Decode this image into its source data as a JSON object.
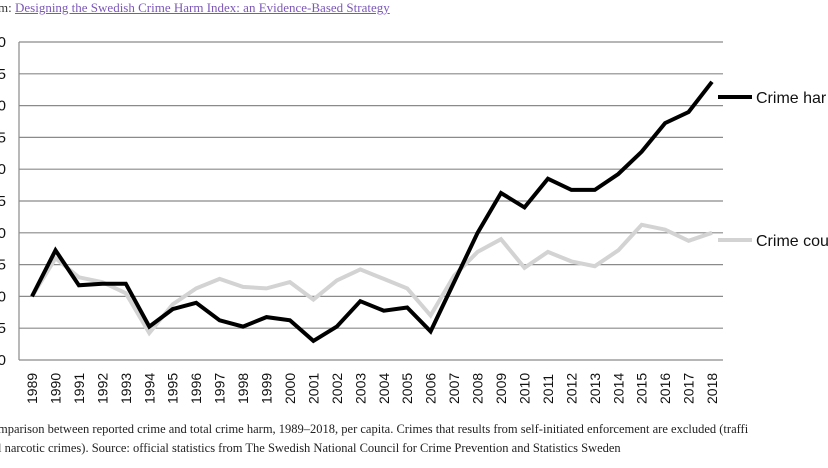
{
  "source": {
    "prefix": "m: ",
    "link_text": "Designing the Swedish Crime Harm Index: an Evidence-Based Strategy"
  },
  "caption": {
    "line1": "mparison between reported crime and total crime harm, 1989–2018, per capita. Crimes that results from self-initiated enforcement are excluded (traffi",
    "line2": "l narcotic crimes). Source: official statistics from The Swedish National Council for Crime Prevention and Statistics Sweden"
  },
  "chart_data": {
    "type": "line",
    "x": [
      1989,
      1990,
      1991,
      1992,
      1993,
      1994,
      1995,
      1996,
      1997,
      1998,
      1999,
      2000,
      2001,
      2002,
      2003,
      2004,
      2005,
      2006,
      2007,
      2008,
      2009,
      2010,
      2011,
      2012,
      2013,
      2014,
      2015,
      2016,
      2017,
      2018
    ],
    "x_tick_labels": [
      "1989",
      "1990",
      "1991",
      "1992",
      "1993",
      "1994",
      "1995",
      "1996",
      "1997",
      "1998",
      "1999",
      "2000",
      "2001",
      "2002",
      "2003",
      "2004",
      "2005",
      "2006",
      "2007",
      "2008",
      "2009",
      "2010",
      "2011",
      "2012",
      "2013",
      "2014",
      "2015",
      "2016",
      "2017",
      "2018"
    ],
    "y_tick_labels": [
      "0",
      "5",
      "0",
      "5",
      "0",
      "5",
      "0",
      "5",
      "0",
      "5",
      "0"
    ],
    "ylim": [
      0,
      10
    ],
    "grid": true,
    "legend_placement": "right",
    "series": [
      {
        "name": "Crime har",
        "color": "#000000",
        "values": [
          2.0,
          3.45,
          2.35,
          2.4,
          2.4,
          1.05,
          1.6,
          1.8,
          1.25,
          1.05,
          1.35,
          1.25,
          0.6,
          1.05,
          1.85,
          1.55,
          1.65,
          0.9,
          2.45,
          4.0,
          5.25,
          4.8,
          5.7,
          5.35,
          5.35,
          5.85,
          6.55,
          7.45,
          7.8,
          8.75
        ]
      },
      {
        "name": "Crime cou",
        "color": "#d3d3d3",
        "values": [
          2.0,
          3.2,
          2.6,
          2.45,
          2.1,
          0.85,
          1.75,
          2.25,
          2.55,
          2.3,
          2.25,
          2.45,
          1.9,
          2.5,
          2.85,
          2.55,
          2.25,
          1.4,
          2.65,
          3.4,
          3.8,
          2.9,
          3.4,
          3.1,
          2.95,
          3.45,
          4.25,
          4.1,
          3.75,
          4.0
        ]
      }
    ]
  }
}
